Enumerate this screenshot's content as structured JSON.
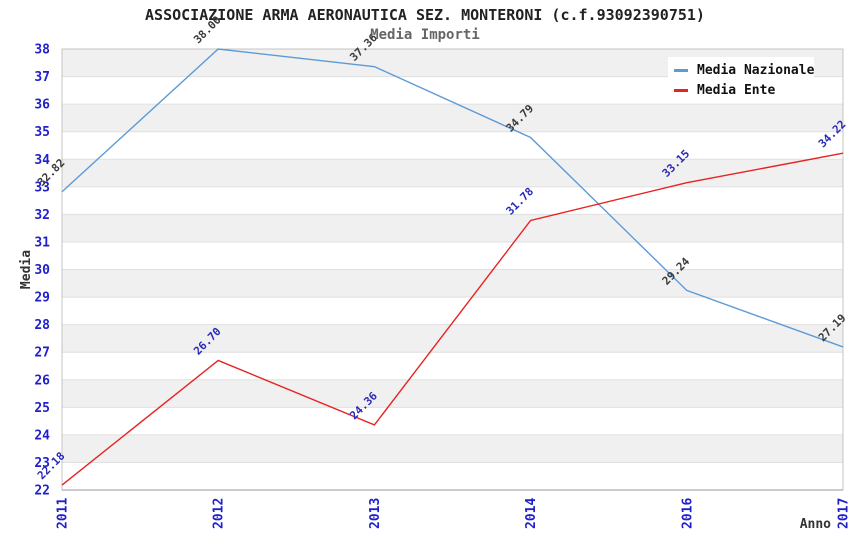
{
  "header": {
    "title": "ASSOCIAZIONE ARMA AERONAUTICA SEZ. MONTERONI (c.f.93092390751)",
    "subtitle": "Media Importi"
  },
  "chart_data": {
    "type": "line",
    "title": "ASSOCIAZIONE ARMA AERONAUTICA SEZ. MONTERONI (c.f.93092390751)",
    "subtitle": "Media Importi",
    "xlabel": "Anno",
    "ylabel": "Media",
    "categories": [
      "2011",
      "2012",
      "2013",
      "2014",
      "2016",
      "2017"
    ],
    "yticks": [
      22,
      23,
      24,
      25,
      26,
      27,
      28,
      29,
      30,
      31,
      32,
      33,
      34,
      35,
      36,
      37,
      38
    ],
    "ylim": [
      22,
      38
    ],
    "grid": "horizontal-bands",
    "legend_position": "top-right",
    "series": [
      {
        "name": "Media Nazionale",
        "color": "#5D9AD6",
        "label_color": "#3A3A3A",
        "values": [
          32.82,
          38.0,
          37.36,
          34.79,
          29.24,
          27.19
        ],
        "labels": [
          "32.82",
          "38.00",
          "37.36",
          "34.79",
          "29.24",
          "27.19"
        ]
      },
      {
        "name": "Media Ente",
        "color": "#E82222",
        "label_color": "#2929B8",
        "values": [
          22.18,
          26.7,
          24.36,
          31.78,
          33.15,
          34.22
        ],
        "labels": [
          "22.18",
          "26.70",
          "24.36",
          "31.78",
          "33.15",
          "34.22"
        ]
      }
    ],
    "colors": {
      "title": "#222222",
      "subtitle": "#666666",
      "axis_tick": "#1F1FCC",
      "axis_title": "#333333",
      "band": "#F0F0F0",
      "band_alt": "#FFFFFF",
      "grid_line": "#E0E0E0",
      "border": "#C4C4C4",
      "bottom_axis": "#999999",
      "legend_bg": "#FFFFFF",
      "legend_text": "#111111"
    }
  }
}
